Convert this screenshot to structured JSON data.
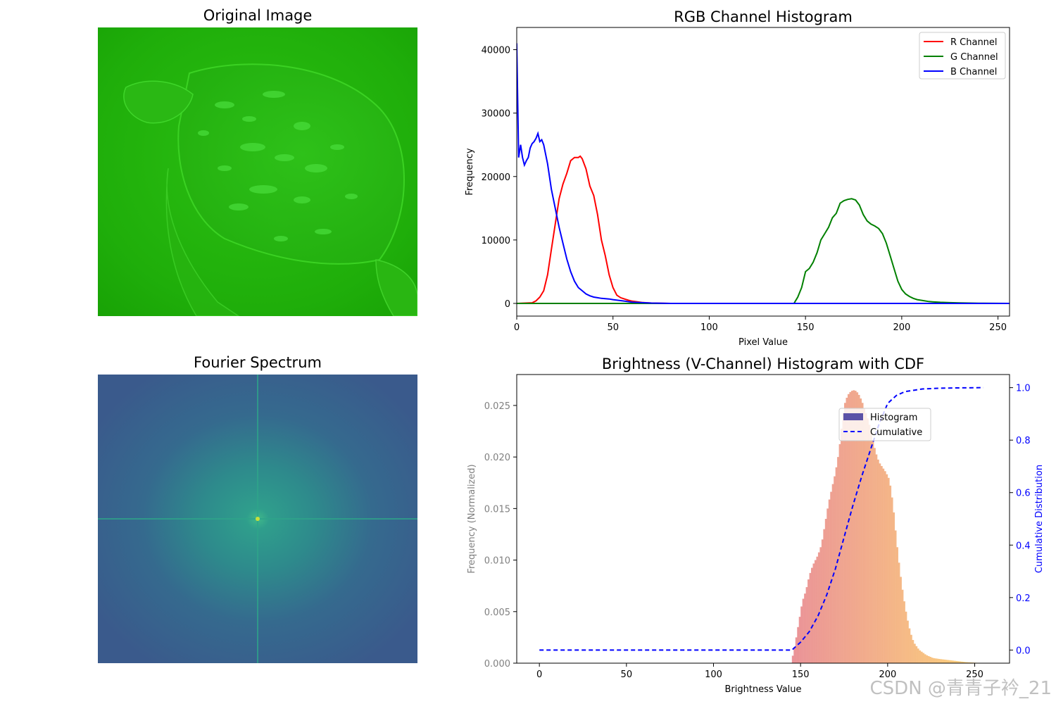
{
  "panels": {
    "original": {
      "title": "Original Image"
    },
    "fourier": {
      "title": "Fourier Spectrum"
    }
  },
  "watermark": "CSDN @青青子衿_21",
  "colors": {
    "r_channel": "#ff0000",
    "g_channel": "#008000",
    "b_channel": "#0000ff",
    "hist_low": "#e8888e",
    "hist_high": "#fdd16c",
    "cdf": "#0000ff",
    "legend_hist_patch": "#5b52a7"
  },
  "chart_data": [
    {
      "type": "line",
      "title": "RGB Channel Histogram",
      "xlabel": "Pixel Value",
      "ylabel": "Frequency",
      "xlim": [
        0,
        256
      ],
      "ylim": [
        -2000,
        43500
      ],
      "xticks": [
        0,
        50,
        100,
        150,
        200,
        250
      ],
      "yticks": [
        0,
        10000,
        20000,
        30000,
        40000
      ],
      "legend_position": "top-right",
      "series": [
        {
          "name": "R Channel",
          "color": "#ff0000",
          "x": [
            0,
            8,
            10,
            12,
            14,
            16,
            18,
            20,
            22,
            24,
            26,
            28,
            30,
            32,
            33,
            34,
            36,
            38,
            40,
            42,
            44,
            46,
            48,
            50,
            52,
            54,
            56,
            58,
            60,
            65,
            70,
            80,
            256
          ],
          "y": [
            0,
            100,
            400,
            1000,
            2000,
            4500,
            8500,
            12500,
            16500,
            18800,
            20500,
            22500,
            23000,
            23000,
            23200,
            22800,
            21200,
            18500,
            17000,
            14000,
            10000,
            7500,
            4500,
            2500,
            1300,
            900,
            700,
            500,
            350,
            150,
            50,
            0,
            0
          ]
        },
        {
          "name": "G Channel",
          "color": "#008000",
          "x": [
            0,
            144,
            146,
            148,
            150,
            152,
            154,
            156,
            158,
            160,
            162,
            164,
            166,
            168,
            170,
            172,
            174,
            176,
            178,
            180,
            182,
            184,
            186,
            188,
            190,
            192,
            194,
            196,
            198,
            200,
            202,
            204,
            206,
            208,
            210,
            212,
            214,
            216,
            220,
            225,
            230,
            240,
            256
          ],
          "y": [
            0,
            0,
            1000,
            2500,
            5000,
            5500,
            6500,
            8000,
            10000,
            11000,
            12000,
            13500,
            14200,
            15800,
            16200,
            16400,
            16500,
            16300,
            15500,
            14000,
            13000,
            12500,
            12200,
            11800,
            11000,
            9500,
            7500,
            5500,
            3500,
            2200,
            1500,
            1100,
            800,
            600,
            500,
            400,
            300,
            250,
            180,
            120,
            80,
            30,
            0
          ]
        },
        {
          "name": "B Channel",
          "color": "#0000ff",
          "x": [
            0,
            1,
            2,
            3,
            4,
            5,
            6,
            7,
            8,
            9,
            10,
            11,
            12,
            13,
            14,
            16,
            18,
            20,
            22,
            24,
            26,
            28,
            30,
            32,
            34,
            36,
            38,
            40,
            42,
            44,
            46,
            48,
            50,
            55,
            60,
            70,
            80,
            256
          ],
          "y": [
            41000,
            23000,
            25000,
            23000,
            21800,
            22500,
            23000,
            24500,
            25200,
            25500,
            26000,
            26800,
            25500,
            25800,
            25000,
            22000,
            18000,
            15000,
            12000,
            9500,
            7000,
            5000,
            3500,
            2500,
            2000,
            1500,
            1200,
            1000,
            900,
            800,
            750,
            700,
            600,
            400,
            200,
            50,
            0,
            0
          ]
        }
      ]
    },
    {
      "type": "bar",
      "title": "Brightness (V-Channel) Histogram with CDF",
      "xlabel": "Brightness Value",
      "ylabel": "Frequency (Normalized)",
      "ylabel_right": "Cumulative Distribution",
      "xlim": [
        -13,
        270
      ],
      "ylim": [
        0,
        0.028
      ],
      "ylim_right": [
        -0.05,
        1.05
      ],
      "xticks": [
        0,
        50,
        100,
        150,
        200,
        250
      ],
      "yticks": [
        0.0,
        0.005,
        0.01,
        0.015,
        0.02,
        0.025
      ],
      "yticks_right": [
        0.0,
        0.2,
        0.4,
        0.6,
        0.8,
        1.0
      ],
      "legend_position": "upper-right-center",
      "histogram": {
        "name": "Histogram",
        "x": [
          145,
          147,
          149,
          151,
          153,
          155,
          157,
          160,
          162,
          164,
          166,
          168,
          170,
          172,
          174,
          175,
          177,
          179,
          181,
          183,
          185,
          187,
          189,
          191,
          193,
          195,
          197,
          199,
          201,
          203,
          205,
          207,
          209,
          211,
          213,
          215,
          218,
          222,
          226,
          230,
          235,
          240,
          245,
          250,
          255
        ],
        "y": [
          0.0003,
          0.002,
          0.004,
          0.006,
          0.007,
          0.0085,
          0.0095,
          0.0105,
          0.0115,
          0.0135,
          0.0155,
          0.017,
          0.0185,
          0.0205,
          0.0235,
          0.025,
          0.026,
          0.0264,
          0.0265,
          0.0262,
          0.0255,
          0.0245,
          0.0235,
          0.022,
          0.0205,
          0.0195,
          0.019,
          0.0185,
          0.0178,
          0.0155,
          0.012,
          0.009,
          0.0065,
          0.0045,
          0.003,
          0.002,
          0.0013,
          0.0008,
          0.0005,
          0.0004,
          0.0003,
          0.0002,
          0.0001,
          5e-05,
          0.0
        ]
      },
      "cdf": {
        "name": "Cumulative",
        "x": [
          0,
          145,
          150,
          155,
          160,
          165,
          170,
          175,
          180,
          185,
          190,
          195,
          200,
          205,
          210,
          215,
          220,
          230,
          240,
          255
        ],
        "y": [
          0.0,
          0.0,
          0.03,
          0.07,
          0.13,
          0.21,
          0.31,
          0.43,
          0.55,
          0.66,
          0.76,
          0.86,
          0.94,
          0.97,
          0.985,
          0.99,
          0.995,
          0.998,
          0.999,
          1.0
        ]
      }
    }
  ]
}
